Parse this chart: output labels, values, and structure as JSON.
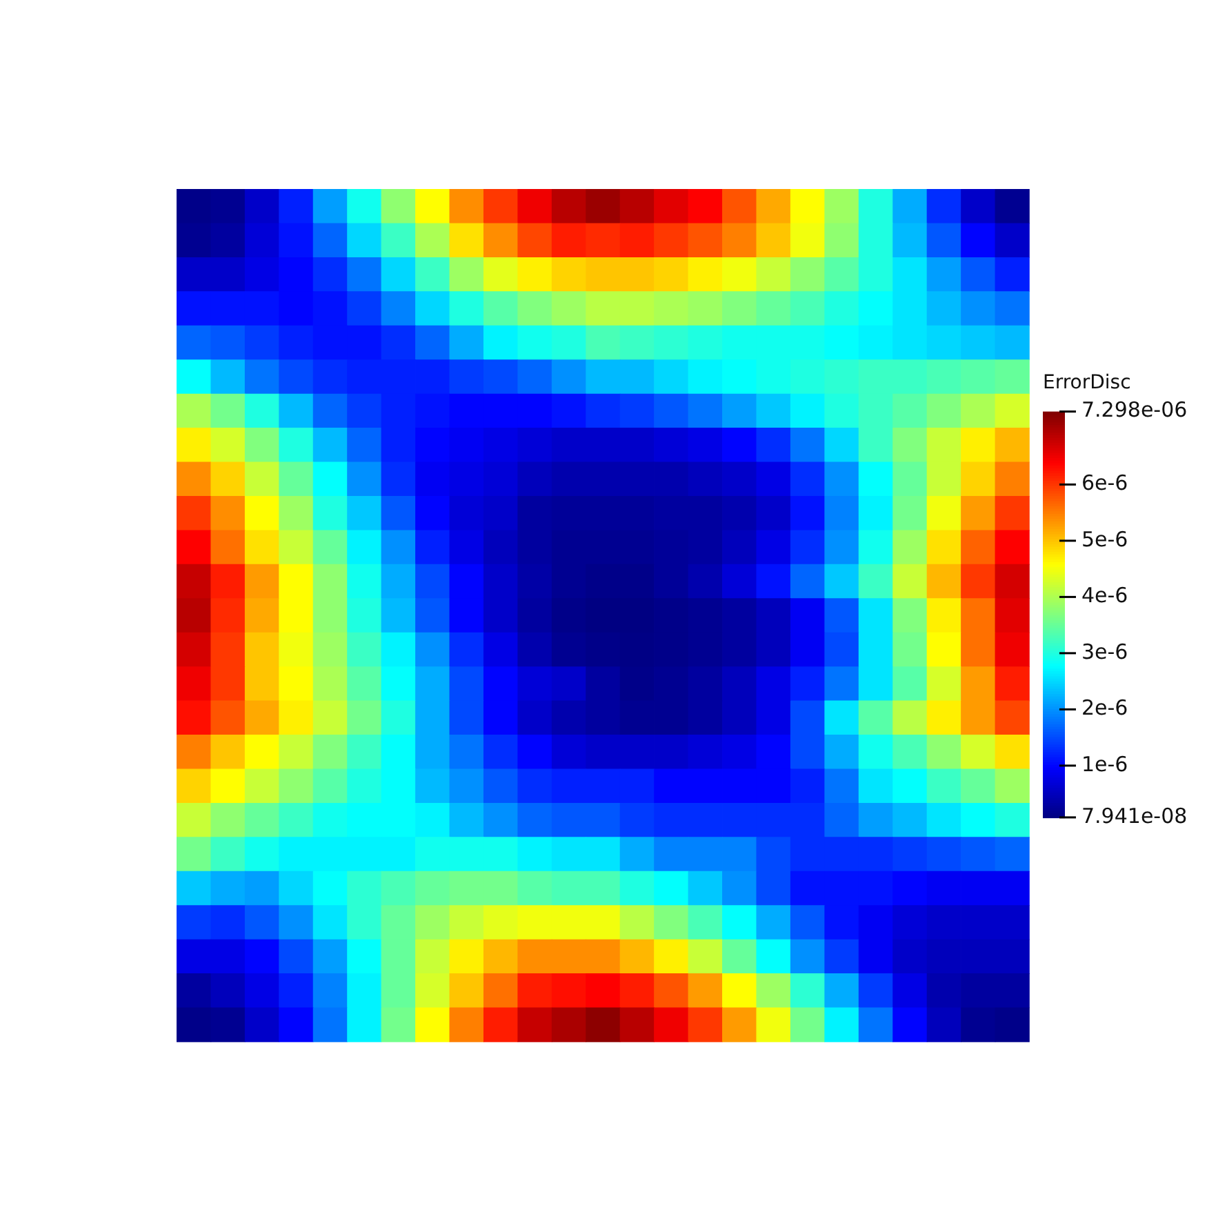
{
  "chart_data": {
    "type": "heatmap",
    "clabel": "ErrorDisc",
    "tick_labels": false,
    "categories": [
      null,
      null,
      null,
      null,
      null,
      null,
      null,
      null,
      null,
      null,
      null,
      null,
      null,
      null,
      null,
      null,
      null,
      null,
      null,
      null,
      null,
      null,
      null,
      null,
      null
    ],
    "y_categories": [
      null,
      null,
      null,
      null,
      null,
      null,
      null,
      null,
      null,
      null,
      null,
      null,
      null,
      null,
      null,
      null,
      null,
      null,
      null,
      null,
      null,
      null,
      null,
      null,
      null
    ],
    "clim": [
      7.941e-08,
      7.298e-06
    ],
    "cticks": [
      {
        "value": 7.941e-08,
        "label": "7.941e-08"
      },
      {
        "value": 1e-06,
        "label": "1e-6"
      },
      {
        "value": 2e-06,
        "label": "2e-6"
      },
      {
        "value": 3e-06,
        "label": "3e-6"
      },
      {
        "value": 4e-06,
        "label": "4e-6"
      },
      {
        "value": 5e-06,
        "label": "5e-6"
      },
      {
        "value": 6e-06,
        "label": "6e-6"
      },
      {
        "value": 7.298e-06,
        "label": "7.298e-06"
      }
    ],
    "cells": [
      [
        1.5e-07,
        2e-07,
        6e-07,
        1.2e-06,
        2.1e-06,
        2.9e-06,
        3.8e-06,
        4.6e-06,
        5.4e-06,
        6e-06,
        6.5e-06,
        6.9e-06,
        7.1e-06,
        6.9e-06,
        6.6e-06,
        6.4e-06,
        5.8e-06,
        5.2e-06,
        4.6e-06,
        3.9e-06,
        3e-06,
        2.2e-06,
        1.3e-06,
        6e-07,
        2e-07
      ],
      [
        2e-07,
        3e-07,
        7e-07,
        1.1e-06,
        1.7e-06,
        2.5e-06,
        3.2e-06,
        4e-06,
        4.8e-06,
        5.4e-06,
        5.9e-06,
        6.2e-06,
        6.1e-06,
        6.2e-06,
        6e-06,
        5.8e-06,
        5.5e-06,
        5e-06,
        4.5e-06,
        3.8e-06,
        3e-06,
        2.3e-06,
        1.6e-06,
        1e-06,
        6e-07
      ],
      [
        6e-07,
        6e-07,
        8e-07,
        1e-06,
        1.3e-06,
        1.8e-06,
        2.5e-06,
        3.2e-06,
        3.9e-06,
        4.4e-06,
        4.7e-06,
        4.9e-06,
        5e-06,
        5e-06,
        4.9e-06,
        4.7e-06,
        4.5e-06,
        4.2e-06,
        3.8e-06,
        3.4e-06,
        3e-06,
        2.6e-06,
        2.1e-06,
        1.6e-06,
        1.2e-06
      ],
      [
        1.1e-06,
        1.1e-06,
        1.1e-06,
        1e-06,
        1.1e-06,
        1.4e-06,
        1.9e-06,
        2.5e-06,
        3e-06,
        3.4e-06,
        3.7e-06,
        3.9e-06,
        4.1e-06,
        4.1e-06,
        4e-06,
        3.9e-06,
        3.7e-06,
        3.5e-06,
        3.3e-06,
        3e-06,
        2.8e-06,
        2.6e-06,
        2.3e-06,
        2e-06,
        1.8e-06
      ],
      [
        1.7e-06,
        1.6e-06,
        1.4e-06,
        1.2e-06,
        1.1e-06,
        1.1e-06,
        1.3e-06,
        1.7e-06,
        2.2e-06,
        2.7e-06,
        2.9e-06,
        3e-06,
        3.3e-06,
        3.2e-06,
        3.1e-06,
        3e-06,
        2.9e-06,
        2.9e-06,
        2.9e-06,
        2.8e-06,
        2.7e-06,
        2.6e-06,
        2.5e-06,
        2.4e-06,
        2.3e-06
      ],
      [
        2.8e-06,
        2.3e-06,
        1.8e-06,
        1.5e-06,
        1.3e-06,
        1.2e-06,
        1.2e-06,
        1.2e-06,
        1.4e-06,
        1.5e-06,
        1.7e-06,
        2e-06,
        2.3e-06,
        2.3e-06,
        2.5e-06,
        2.7e-06,
        2.8e-06,
        2.9e-06,
        3e-06,
        3.1e-06,
        3.2e-06,
        3.2e-06,
        3.3e-06,
        3.4e-06,
        3.5e-06
      ],
      [
        4e-06,
        3.6e-06,
        3e-06,
        2.3e-06,
        1.7e-06,
        1.4e-06,
        1.2e-06,
        1.1e-06,
        1e-06,
        1e-06,
        1e-06,
        1.1e-06,
        1.3e-06,
        1.4e-06,
        1.6e-06,
        1.8e-06,
        2.1e-06,
        2.4e-06,
        2.7e-06,
        3e-06,
        3.2e-06,
        3.4e-06,
        3.7e-06,
        4e-06,
        4.3e-06
      ],
      [
        4.7e-06,
        4.3e-06,
        3.7e-06,
        3e-06,
        2.3e-06,
        1.7e-06,
        1.2e-06,
        1e-06,
        9e-07,
        8e-07,
        7e-07,
        6e-07,
        6e-07,
        6e-07,
        7e-07,
        8e-07,
        1e-06,
        1.3e-06,
        1.8e-06,
        2.5e-06,
        3.2e-06,
        3.7e-06,
        4.2e-06,
        4.7e-06,
        5.1e-06
      ],
      [
        5.4e-06,
        4.9e-06,
        4.2e-06,
        3.5e-06,
        2.8e-06,
        2e-06,
        1.3e-06,
        9e-07,
        8e-07,
        7e-07,
        5e-07,
        4e-07,
        4e-07,
        4e-07,
        4e-07,
        5e-07,
        6e-07,
        8e-07,
        1.3e-06,
        2e-06,
        2.8e-06,
        3.5e-06,
        4.2e-06,
        4.9e-06,
        5.5e-06
      ],
      [
        6e-06,
        5.4e-06,
        4.6e-06,
        3.9e-06,
        3e-06,
        2.4e-06,
        1.6e-06,
        1e-06,
        7e-07,
        6e-07,
        3e-07,
        2.5e-07,
        2.5e-07,
        2.5e-07,
        3e-07,
        3e-07,
        4e-07,
        6e-07,
        1.1e-06,
        1.9e-06,
        2.7e-06,
        3.6e-06,
        4.5e-06,
        5.3e-06,
        6e-06
      ],
      [
        6.4e-06,
        5.6e-06,
        4.8e-06,
        4.2e-06,
        3.5e-06,
        2.7e-06,
        2e-06,
        1.2e-06,
        8e-07,
        5e-07,
        3e-07,
        2e-07,
        2e-07,
        2e-07,
        2.5e-07,
        3e-07,
        5e-07,
        8e-07,
        1.3e-06,
        2e-06,
        2.9e-06,
        3.9e-06,
        4.8e-06,
        5.7e-06,
        6.4e-06
      ],
      [
        6.8e-06,
        6.2e-06,
        5.3e-06,
        4.6e-06,
        3.8e-06,
        2.9e-06,
        2.2e-06,
        1.5e-06,
        1e-06,
        6e-07,
        3.5e-07,
        2e-07,
        1.5e-07,
        1.5e-07,
        2.5e-07,
        4e-07,
        7e-07,
        1.1e-06,
        1.7e-06,
        2.4e-06,
        3.2e-06,
        4.2e-06,
        5.1e-06,
        6e-06,
        6.7e-06
      ],
      [
        6.9e-06,
        6.1e-06,
        5.2e-06,
        4.6e-06,
        3.8e-06,
        3e-06,
        2.3e-06,
        1.6e-06,
        1e-06,
        6e-07,
        3e-07,
        1.5e-07,
        1e-07,
        1e-07,
        1.5e-07,
        2e-07,
        3e-07,
        5e-07,
        9e-07,
        1.6e-06,
        2.6e-06,
        3.7e-06,
        4.7e-06,
        5.6e-06,
        6.6e-06
      ],
      [
        6.7e-06,
        6e-06,
        5e-06,
        4.5e-06,
        3.9e-06,
        3.2e-06,
        2.7e-06,
        2e-06,
        1.3e-06,
        8e-07,
        4e-07,
        2e-07,
        1.5e-07,
        1.2e-07,
        1.5e-07,
        2e-07,
        3e-07,
        5e-07,
        9e-07,
        1.5e-06,
        2.6e-06,
        3.6e-06,
        4.6e-06,
        5.6e-06,
        6.5e-06
      ],
      [
        6.5e-06,
        6e-06,
        5e-06,
        4.6e-06,
        4e-06,
        3.4e-06,
        2.8e-06,
        2.2e-06,
        1.5e-06,
        1e-06,
        7e-07,
        6e-07,
        3e-07,
        1.5e-07,
        2e-07,
        3e-07,
        5e-07,
        8e-07,
        1.2e-06,
        1.8e-06,
        2.6e-06,
        3.4e-06,
        4.3e-06,
        5.3e-06,
        6.2e-06
      ],
      [
        6.3e-06,
        5.8e-06,
        5.2e-06,
        4.7e-06,
        4.2e-06,
        3.6e-06,
        3e-06,
        2.2e-06,
        1.5e-06,
        1e-06,
        6e-07,
        4e-07,
        3e-07,
        2e-07,
        2e-07,
        3e-07,
        5e-07,
        8e-07,
        1.5e-06,
        2.6e-06,
        3.4e-06,
        4.1e-06,
        4.7e-06,
        5.3e-06,
        5.9e-06
      ],
      [
        5.5e-06,
        5e-06,
        4.6e-06,
        4.2e-06,
        3.7e-06,
        3.2e-06,
        2.8e-06,
        2.2e-06,
        1.8e-06,
        1.3e-06,
        1e-06,
        7e-07,
        6e-07,
        6e-07,
        6e-07,
        7e-07,
        8e-07,
        1e-06,
        1.5e-06,
        2.2e-06,
        2.9e-06,
        3.3e-06,
        3.8e-06,
        4.3e-06,
        4.8e-06
      ],
      [
        4.9e-06,
        4.6e-06,
        4.2e-06,
        3.8e-06,
        3.4e-06,
        3e-06,
        2.8e-06,
        2.3e-06,
        2e-06,
        1.6e-06,
        1.3e-06,
        1.2e-06,
        1.2e-06,
        1.2e-06,
        1e-06,
        1e-06,
        1e-06,
        1e-06,
        1.2e-06,
        1.8e-06,
        2.6e-06,
        2.8e-06,
        3.2e-06,
        3.5e-06,
        3.9e-06
      ],
      [
        4.2e-06,
        3.8e-06,
        3.5e-06,
        3.2e-06,
        2.9e-06,
        2.8e-06,
        2.8e-06,
        2.7e-06,
        2.3e-06,
        2e-06,
        1.7e-06,
        1.6e-06,
        1.6e-06,
        1.4e-06,
        1.3e-06,
        1.3e-06,
        1.3e-06,
        1.3e-06,
        1.3e-06,
        1.7e-06,
        2.1e-06,
        2.3e-06,
        2.6e-06,
        2.8e-06,
        3e-06
      ],
      [
        3.6e-06,
        3.2e-06,
        2.9e-06,
        2.7e-06,
        2.7e-06,
        2.7e-06,
        2.7e-06,
        2.9e-06,
        2.9e-06,
        2.9e-06,
        2.7e-06,
        2.6e-06,
        2.6e-06,
        2.2e-06,
        1.9e-06,
        1.9e-06,
        1.9e-06,
        1.5e-06,
        1.3e-06,
        1.3e-06,
        1.3e-06,
        1.4e-06,
        1.5e-06,
        1.6e-06,
        1.7e-06
      ],
      [
        2.4e-06,
        2.2e-06,
        2.1e-06,
        2.5e-06,
        2.8e-06,
        3.1e-06,
        3.3e-06,
        3.5e-06,
        3.6e-06,
        3.6e-06,
        3.4e-06,
        3.3e-06,
        3.3e-06,
        3e-06,
        2.8e-06,
        2.4e-06,
        2e-06,
        1.5e-06,
        1.1e-06,
        1.1e-06,
        1.1e-06,
        1e-06,
        9e-07,
        9e-07,
        9e-07
      ],
      [
        1.4e-06,
        1.3e-06,
        1.6e-06,
        2e-06,
        2.6e-06,
        3.1e-06,
        3.5e-06,
        3.9e-06,
        4.2e-06,
        4.4e-06,
        4.5e-06,
        4.5e-06,
        4.5e-06,
        4.1e-06,
        3.7e-06,
        3.3e-06,
        2.8e-06,
        2.2e-06,
        1.6e-06,
        1.1e-06,
        9e-07,
        7e-07,
        6e-07,
        6e-07,
        6e-07
      ],
      [
        8e-07,
        8e-07,
        1e-06,
        1.5e-06,
        2.1e-06,
        2.8e-06,
        3.5e-06,
        4.2e-06,
        4.7e-06,
        5.1e-06,
        5.4e-06,
        5.4e-06,
        5.4e-06,
        5.1e-06,
        4.7e-06,
        4.2e-06,
        3.5e-06,
        2.8e-06,
        2e-06,
        1.4e-06,
        9e-07,
        6e-07,
        5e-07,
        5e-07,
        5e-07
      ],
      [
        3e-07,
        5e-07,
        8e-07,
        1.2e-06,
        1.9e-06,
        2.7e-06,
        3.5e-06,
        4.3e-06,
        5e-06,
        5.6e-06,
        6.2e-06,
        6.3e-06,
        6.4e-06,
        6.2e-06,
        5.8e-06,
        5.3e-06,
        4.6e-06,
        3.9e-06,
        3.1e-06,
        2.2e-06,
        1.4e-06,
        8e-07,
        4e-07,
        3e-07,
        3e-07
      ],
      [
        1.5e-07,
        2e-07,
        6e-07,
        1e-06,
        1.8e-06,
        2.7e-06,
        3.6e-06,
        4.6e-06,
        5.5e-06,
        6.2e-06,
        6.8e-06,
        7e-06,
        7.2e-06,
        6.9e-06,
        6.5e-06,
        6e-06,
        5.3e-06,
        4.5e-06,
        3.6e-06,
        2.7e-06,
        1.8e-06,
        1e-06,
        5e-07,
        2e-07,
        1.5e-07
      ]
    ]
  }
}
